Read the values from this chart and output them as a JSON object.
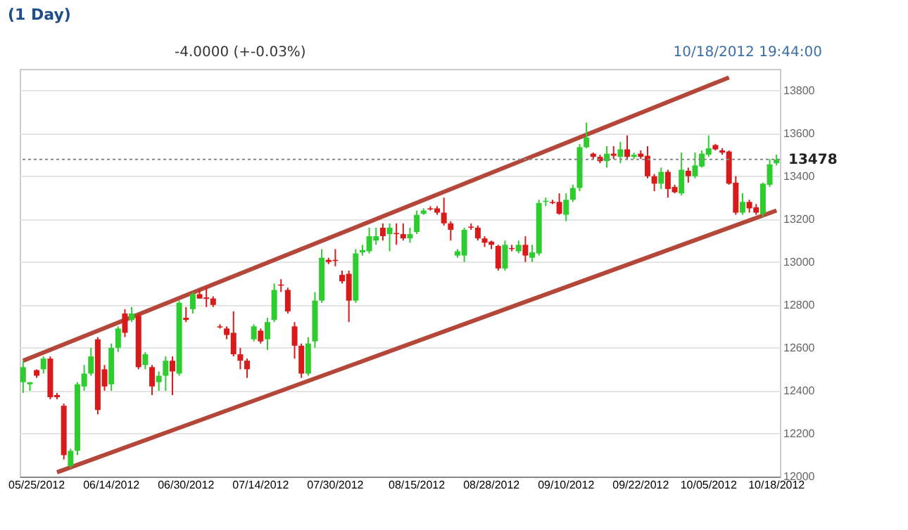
{
  "chart_data": {
    "type": "candlestick",
    "title": "(1 Day)",
    "annotations": [
      "-4.0000 (+-0.03%)",
      "10/18/2012 19:44:00"
    ],
    "categories": [
      null,
      null,
      "05/25/2012",
      null,
      null,
      null,
      null,
      null,
      null,
      null,
      null,
      null,
      null,
      "06/14/2012",
      null,
      null,
      null,
      null,
      null,
      null,
      null,
      null,
      null,
      null,
      "06/30/2012",
      null,
      null,
      null,
      null,
      null,
      null,
      null,
      null,
      null,
      null,
      "07/14/2012",
      null,
      null,
      null,
      null,
      null,
      null,
      null,
      null,
      null,
      null,
      "07/30/2012",
      null,
      null,
      null,
      null,
      null,
      null,
      null,
      null,
      null,
      null,
      null,
      "08/15/2012",
      null,
      null,
      null,
      null,
      null,
      null,
      null,
      null,
      null,
      null,
      "08/28/2012",
      null,
      null,
      null,
      null,
      null,
      null,
      null,
      null,
      null,
      null,
      "09/10/2012",
      null,
      null,
      null,
      null,
      null,
      null,
      null,
      null,
      null,
      null,
      "09/22/2012",
      null,
      null,
      null,
      null,
      null,
      null,
      null,
      null,
      null,
      "10/05/2012",
      null,
      null,
      null,
      null,
      null,
      null,
      null,
      null,
      null,
      "10/18/2012"
    ],
    "series": [
      {
        "type": "candlestick",
        "colors": [
          "#2ecc2e",
          "#2ecc2e",
          "#d91a1a",
          "#2ecc2e",
          "#d91a1a",
          "#d91a1a",
          "#d91a1a",
          "#2ecc2e",
          "#2ecc2e",
          "#2ecc2e",
          "#2ecc2e",
          "#d91a1a",
          "#d91a1a",
          "#2ecc2e",
          "#2ecc2e",
          "#d91a1a",
          "#2ecc2e",
          "#d91a1a",
          "#2ecc2e",
          "#d91a1a",
          "#2ecc2e",
          "#2ecc2e",
          "#d91a1a",
          "#2ecc2e",
          "#d91a1a",
          "#2ecc2e",
          "#d91a1a",
          "#d91a1a",
          "#d91a1a",
          "#d91a1a",
          "#d91a1a",
          "#d91a1a",
          "#d91a1a",
          "#d91a1a",
          "#2ecc2e",
          "#d91a1a",
          "#2ecc2e",
          "#2ecc2e",
          "#d91a1a",
          "#d91a1a",
          "#d91a1a",
          "#d91a1a",
          "#2ecc2e",
          "#2ecc2e",
          "#2ecc2e",
          "#d91a1a",
          "#d91a1a",
          "#d91a1a",
          "#d91a1a",
          "#2ecc2e",
          "#2ecc2e",
          "#2ecc2e",
          "#2ecc2e",
          "#d91a1a",
          "#2ecc2e",
          "#d91a1a",
          "#d91a1a",
          "#2ecc2e",
          "#2ecc2e",
          "#2ecc2e",
          "#d91a1a",
          "#d91a1a",
          "#d91a1a",
          "#d91a1a",
          "#2ecc2e",
          "#2ecc2e",
          "#d91a1a",
          "#d91a1a",
          "#d91a1a",
          "#d91a1a",
          "#d91a1a",
          "#2ecc2e",
          "#d91a1a",
          "#2ecc2e",
          "#d91a1a",
          "#2ecc2e",
          "#2ecc2e",
          "#2ecc2e",
          "#d91a1a",
          "#d91a1a",
          "#2ecc2e",
          "#2ecc2e",
          "#2ecc2e",
          "#2ecc2e",
          "#d91a1a",
          "#d91a1a",
          "#2ecc2e",
          "#d91a1a",
          "#2ecc2e",
          "#d91a1a",
          "#2ecc2e",
          "#d91a1a",
          "#d91a1a",
          "#d91a1a",
          "#2ecc2e",
          "#d91a1a",
          "#d91a1a",
          "#2ecc2e",
          "#d91a1a",
          "#2ecc2e",
          "#2ecc2e",
          "#2ecc2e",
          "#d91a1a",
          "#d91a1a",
          "#d91a1a",
          "#d91a1a",
          "#2ecc2e",
          "#d91a1a",
          "#d91a1a",
          "#2ecc2e",
          "#2ecc2e",
          "#2ecc2e"
        ],
        "ohlc": [
          [
            12440,
            12540,
            12390,
            12510
          ],
          [
            12430,
            12440,
            12400,
            12440
          ],
          [
            12496,
            12500,
            12460,
            12470
          ],
          [
            12500,
            12560,
            12480,
            12550
          ],
          [
            12550,
            12560,
            12360,
            12370
          ],
          [
            12380,
            12390,
            12360,
            12370
          ],
          [
            12330,
            12340,
            12080,
            12100
          ],
          [
            12050,
            12130,
            12040,
            12120
          ],
          [
            12120,
            12440,
            12100,
            12430
          ],
          [
            12420,
            12520,
            12400,
            12480
          ],
          [
            12480,
            12600,
            12470,
            12560
          ],
          [
            12640,
            12650,
            12290,
            12310
          ],
          [
            12500,
            12520,
            12400,
            12420
          ],
          [
            12430,
            12620,
            12400,
            12600
          ],
          [
            12600,
            12700,
            12580,
            12690
          ],
          [
            12760,
            12780,
            12650,
            12670
          ],
          [
            12730,
            12790,
            12720,
            12760
          ],
          [
            12750,
            12760,
            12500,
            12510
          ],
          [
            12520,
            12580,
            12500,
            12570
          ],
          [
            12510,
            12520,
            12380,
            12420
          ],
          [
            12440,
            12490,
            12400,
            12470
          ],
          [
            12470,
            12560,
            12400,
            12540
          ],
          [
            12540,
            12560,
            12380,
            12490
          ],
          [
            12480,
            12820,
            12470,
            12810
          ],
          [
            12740,
            12790,
            12720,
            12730
          ],
          [
            12780,
            12860,
            12760,
            12850
          ],
          [
            12850,
            12870,
            12830,
            12830
          ],
          [
            12835,
            12880,
            12790,
            12828
          ],
          [
            12830,
            12840,
            12790,
            12800
          ],
          [
            12700,
            12710,
            12690,
            12695
          ],
          [
            12690,
            12700,
            12640,
            12660
          ],
          [
            12670,
            12770,
            12560,
            12570
          ],
          [
            12570,
            12600,
            12500,
            12540
          ],
          [
            12540,
            12550,
            12460,
            12500
          ],
          [
            12640,
            12710,
            12630,
            12700
          ],
          [
            12680,
            12690,
            12620,
            12630
          ],
          [
            12640,
            12740,
            12590,
            12720
          ],
          [
            12730,
            12900,
            12720,
            12870
          ],
          [
            12895,
            12920,
            12860,
            12890
          ],
          [
            12870,
            12880,
            12760,
            12770
          ],
          [
            12700,
            12720,
            12550,
            12610
          ],
          [
            12610,
            12620,
            12460,
            12480
          ],
          [
            12480,
            12650,
            12470,
            12620
          ],
          [
            12630,
            12860,
            12600,
            12820
          ],
          [
            12820,
            13060,
            12810,
            13020
          ],
          [
            13010,
            13020,
            12990,
            13000
          ],
          [
            13010,
            13060,
            12980,
            13005
          ],
          [
            12940,
            12960,
            12900,
            12910
          ],
          [
            12945,
            12960,
            12720,
            12820
          ],
          [
            12820,
            13060,
            12810,
            13040
          ],
          [
            13045,
            13080,
            13030,
            13055
          ],
          [
            13050,
            13160,
            13040,
            13120
          ],
          [
            13100,
            13160,
            13080,
            13120
          ],
          [
            13160,
            13180,
            13100,
            13120
          ],
          [
            13130,
            13180,
            13050,
            13160
          ],
          [
            13135,
            13180,
            13080,
            13130
          ],
          [
            13130,
            13180,
            13100,
            13110
          ],
          [
            13110,
            13160,
            13090,
            13130
          ],
          [
            13140,
            13240,
            13130,
            13220
          ],
          [
            13225,
            13250,
            13220,
            13240
          ],
          [
            13250,
            13260,
            13240,
            13245
          ],
          [
            13250,
            13260,
            13220,
            13230
          ],
          [
            13230,
            13300,
            13170,
            13180
          ],
          [
            13180,
            13190,
            13100,
            13150
          ],
          [
            13030,
            13060,
            13020,
            13050
          ],
          [
            13030,
            13160,
            13000,
            13150
          ],
          [
            13165,
            13180,
            13150,
            13160
          ],
          [
            13160,
            13170,
            13100,
            13110
          ],
          [
            13110,
            13120,
            13070,
            13090
          ],
          [
            13095,
            13100,
            13060,
            13080
          ],
          [
            13075,
            13080,
            12960,
            12970
          ],
          [
            12970,
            13100,
            12960,
            13080
          ],
          [
            13065,
            13080,
            13050,
            13060
          ],
          [
            13050,
            13100,
            13040,
            13080
          ],
          [
            13080,
            13120,
            13000,
            13030
          ],
          [
            13020,
            13080,
            13000,
            13045
          ],
          [
            13040,
            13290,
            13030,
            13275
          ],
          [
            13280,
            13300,
            13260,
            13285
          ],
          [
            13280,
            13290,
            13270,
            13275
          ],
          [
            13280,
            13320,
            13220,
            13225
          ],
          [
            13220,
            13320,
            13190,
            13290
          ],
          [
            13290,
            13360,
            13280,
            13345
          ],
          [
            13345,
            13550,
            13330,
            13535
          ],
          [
            13535,
            13650,
            13530,
            13580
          ],
          [
            13505,
            13510,
            13480,
            13490
          ],
          [
            13490,
            13500,
            13460,
            13470
          ],
          [
            13470,
            13540,
            13440,
            13505
          ],
          [
            13505,
            13540,
            13480,
            13495
          ],
          [
            13490,
            13560,
            13460,
            13525
          ],
          [
            13525,
            13590,
            13480,
            13490
          ],
          [
            13490,
            13510,
            13480,
            13500
          ],
          [
            13505,
            13520,
            13480,
            13490
          ],
          [
            13495,
            13540,
            13390,
            13400
          ],
          [
            13400,
            13410,
            13330,
            13365
          ],
          [
            13365,
            13440,
            13340,
            13420
          ],
          [
            13420,
            13430,
            13300,
            13340
          ],
          [
            13350,
            13360,
            13320,
            13325
          ],
          [
            13320,
            13510,
            13310,
            13430
          ],
          [
            13425,
            13440,
            13370,
            13400
          ],
          [
            13400,
            13510,
            13390,
            13450
          ],
          [
            13445,
            13520,
            13440,
            13505
          ],
          [
            13500,
            13590,
            13490,
            13530
          ],
          [
            13545,
            13550,
            13520,
            13525
          ],
          [
            13520,
            13530,
            13500,
            13510
          ],
          [
            13515,
            13520,
            13360,
            13365
          ],
          [
            13370,
            13400,
            13220,
            13230
          ],
          [
            13230,
            13320,
            13220,
            13280
          ],
          [
            13280,
            13290,
            13230,
            13250
          ],
          [
            13255,
            13270,
            13220,
            13230
          ],
          [
            13225,
            13370,
            13210,
            13365
          ],
          [
            13360,
            13480,
            13350,
            13455
          ],
          [
            13460,
            13500,
            13450,
            13478
          ]
        ]
      },
      {
        "type": "line",
        "color": "#b5473a",
        "values": [
          12540,
          null,
          null,
          null,
          null,
          null,
          null,
          null,
          null,
          null,
          null,
          null,
          null,
          null,
          null,
          null,
          null,
          null,
          null,
          null,
          null,
          null,
          null,
          null,
          null,
          null,
          null,
          null,
          null,
          null,
          null,
          null,
          null,
          null,
          null,
          null,
          null,
          null,
          null,
          null,
          null,
          null,
          null,
          null,
          null,
          null,
          null,
          null,
          null,
          null,
          null,
          null,
          null,
          null,
          null,
          null,
          null,
          null,
          null,
          null,
          null,
          null,
          null,
          null,
          null,
          null,
          null,
          null,
          null,
          null,
          null,
          null,
          null,
          null,
          null,
          null,
          null,
          null,
          null,
          null,
          null,
          null,
          null,
          null,
          null,
          null,
          null,
          null,
          null,
          null,
          null,
          null,
          null,
          null,
          null,
          null,
          null,
          null,
          null,
          null,
          null,
          null,
          null,
          null,
          13860,
          null,
          null,
          null,
          null,
          null,
          null,
          null
        ]
      },
      {
        "type": "line",
        "color": "#b5473a",
        "values": [
          null,
          null,
          null,
          null,
          null,
          12020,
          null,
          null,
          null,
          null,
          null,
          null,
          null,
          null,
          null,
          null,
          null,
          null,
          null,
          null,
          null,
          null,
          null,
          null,
          null,
          null,
          null,
          null,
          null,
          null,
          null,
          null,
          null,
          null,
          null,
          null,
          null,
          null,
          null,
          null,
          null,
          null,
          null,
          null,
          null,
          null,
          null,
          null,
          null,
          null,
          null,
          null,
          null,
          null,
          null,
          null,
          null,
          null,
          null,
          null,
          null,
          null,
          null,
          null,
          null,
          null,
          null,
          null,
          null,
          null,
          null,
          null,
          null,
          null,
          null,
          null,
          null,
          null,
          null,
          null,
          null,
          null,
          null,
          null,
          null,
          null,
          null,
          null,
          null,
          null,
          null,
          null,
          null,
          null,
          null,
          null,
          null,
          null,
          null,
          null,
          null,
          null,
          null,
          null,
          null,
          null,
          null,
          null,
          null,
          null,
          null,
          13240
        ]
      }
    ],
    "ylim": [
      12000,
      13900
    ],
    "yticks": [
      12000,
      12200,
      12400,
      12600,
      12800,
      13000,
      13200,
      13400,
      13600,
      13800
    ],
    "grid": "y",
    "ref_lines": [
      {
        "axis": "y",
        "value": 13478,
        "label": "13478",
        "color": "#888888",
        "line_style": "dotted"
      }
    ]
  }
}
